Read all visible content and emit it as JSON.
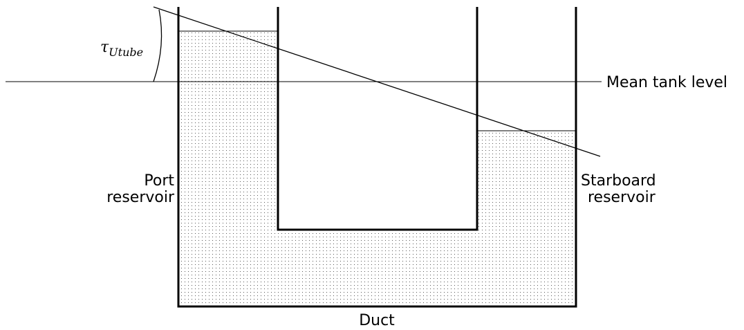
{
  "angle_label": {
    "symbol": "τ",
    "subscript": "Utube"
  },
  "mean_level_label": "Mean tank level",
  "port_label": [
    "Port",
    "reservoir"
  ],
  "starboard_label": [
    "Starboard",
    "reservoir"
  ],
  "duct_label": "Duct"
}
